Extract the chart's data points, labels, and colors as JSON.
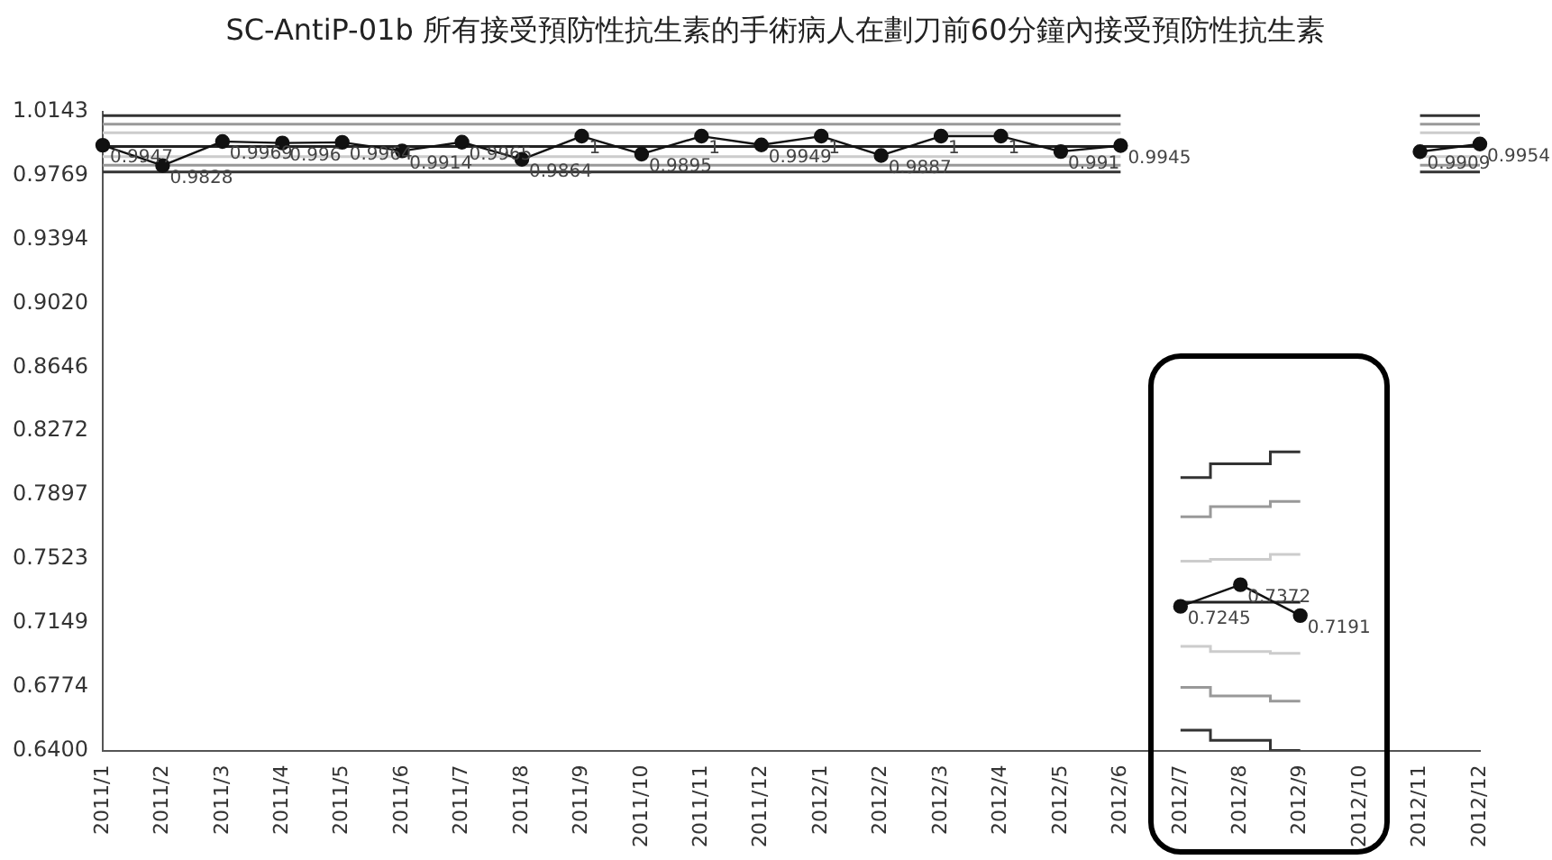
{
  "chart_data": {
    "type": "line",
    "title": "SC-AntiP-01b 所有接受預防性抗生素的手術病人在劃刀前60分鐘內接受預防性抗生素",
    "categories": [
      "2011/1",
      "2011/2",
      "2011/3",
      "2011/4",
      "2011/5",
      "2011/6",
      "2011/7",
      "2011/8",
      "2011/9",
      "2011/10",
      "2011/11",
      "2011/12",
      "2012/1",
      "2012/2",
      "2012/3",
      "2012/4",
      "2012/5",
      "2012/6",
      "2012/7",
      "2012/8",
      "2012/9",
      "2012/10",
      "2012/11",
      "2012/12"
    ],
    "ylim": [
      0.64,
      1.0143
    ],
    "yticks": [
      {
        "value": 0.64,
        "label": "0.6400"
      },
      {
        "value": 0.6774,
        "label": "0.6774"
      },
      {
        "value": 0.7149,
        "label": "0.7149"
      },
      {
        "value": 0.7523,
        "label": "0.7523"
      },
      {
        "value": 0.7897,
        "label": "0.7897"
      },
      {
        "value": 0.8272,
        "label": "0.8272"
      },
      {
        "value": 0.8646,
        "label": "0.8646"
      },
      {
        "value": 0.902,
        "label": "0.9020"
      },
      {
        "value": 0.9394,
        "label": "0.9394"
      },
      {
        "value": 0.9769,
        "label": "0.9769"
      },
      {
        "value": 1.0143,
        "label": "1.0143"
      }
    ],
    "grid": false,
    "legend": false,
    "marker": "circle",
    "series": [
      {
        "type": "line",
        "color": "#111111",
        "values": [
          0.9947,
          0.9828,
          0.9969,
          0.996,
          0.9964,
          0.9914,
          0.9965,
          0.9864,
          1,
          0.9895,
          1,
          0.9949,
          1,
          0.9887,
          1,
          1,
          0.991,
          0.9945,
          null,
          null,
          null,
          null,
          0.9909,
          0.9954
        ],
        "value_labels": [
          "0.9947",
          "0.9828",
          "0.9969",
          "0.996",
          "0.9964",
          "0.9914",
          "0.9965",
          "0.9864",
          "1",
          "0.9895",
          "1",
          "0.9949",
          "1",
          "0.9887",
          "1",
          "1",
          "0.991",
          "0.9945",
          null,
          null,
          null,
          null,
          "0.9909",
          "0.9954"
        ]
      },
      {
        "type": "line",
        "color": "#111111",
        "values": [
          null,
          null,
          null,
          null,
          null,
          null,
          null,
          null,
          null,
          null,
          null,
          null,
          null,
          null,
          null,
          null,
          null,
          null,
          0.7245,
          0.7372,
          0.7191,
          null,
          null,
          null
        ],
        "value_labels": [
          null,
          null,
          null,
          null,
          null,
          null,
          null,
          null,
          null,
          null,
          null,
          null,
          null,
          null,
          null,
          null,
          null,
          null,
          "0.7245",
          "0.7372",
          "0.7191",
          null,
          null,
          null
        ]
      },
      {
        "type": "step",
        "marker": "none",
        "color": "#333333",
        "values": [
          1.012,
          1.012,
          1.012,
          1.012,
          1.012,
          1.012,
          1.012,
          1.012,
          1.012,
          1.012,
          1.012,
          1.012,
          1.012,
          1.012,
          1.012,
          1.012,
          1.012,
          1.012,
          null,
          null,
          null,
          null,
          1.012,
          1.012
        ]
      },
      {
        "type": "step",
        "marker": "none",
        "color": "#999999",
        "values": [
          1.007,
          1.007,
          1.007,
          1.007,
          1.007,
          1.007,
          1.007,
          1.007,
          1.007,
          1.007,
          1.007,
          1.007,
          1.007,
          1.007,
          1.007,
          1.007,
          1.007,
          1.007,
          null,
          null,
          null,
          null,
          1.007,
          1.007
        ]
      },
      {
        "type": "step",
        "marker": "none",
        "color": "#cccccc",
        "values": [
          1.002,
          1.002,
          1.002,
          1.002,
          1.002,
          1.002,
          1.002,
          1.002,
          1.002,
          1.002,
          1.002,
          1.002,
          1.002,
          1.002,
          1.002,
          1.002,
          1.002,
          1.002,
          null,
          null,
          null,
          null,
          1.002,
          1.002
        ]
      },
      {
        "type": "step",
        "marker": "none",
        "color": "#222222",
        "values": [
          0.994,
          0.994,
          0.994,
          0.994,
          0.994,
          0.994,
          0.994,
          0.994,
          0.994,
          0.994,
          0.994,
          0.994,
          0.994,
          0.994,
          0.994,
          0.994,
          0.994,
          0.994,
          null,
          null,
          null,
          null,
          0.994,
          0.994
        ]
      },
      {
        "type": "step",
        "marker": "none",
        "color": "#cccccc",
        "values": [
          0.988,
          0.988,
          0.988,
          0.988,
          0.988,
          0.988,
          0.988,
          0.988,
          0.988,
          0.988,
          0.988,
          0.988,
          0.988,
          0.988,
          0.988,
          0.988,
          0.988,
          0.988,
          null,
          null,
          null,
          null,
          0.988,
          0.988
        ]
      },
      {
        "type": "step",
        "marker": "none",
        "color": "#999999",
        "values": [
          0.983,
          0.983,
          0.983,
          0.983,
          0.983,
          0.983,
          0.983,
          0.983,
          0.983,
          0.983,
          0.983,
          0.983,
          0.983,
          0.983,
          0.983,
          0.983,
          0.983,
          0.983,
          null,
          null,
          null,
          null,
          0.983,
          0.983
        ]
      },
      {
        "type": "step",
        "marker": "none",
        "color": "#333333",
        "values": [
          0.979,
          0.979,
          0.979,
          0.979,
          0.979,
          0.979,
          0.979,
          0.979,
          0.979,
          0.979,
          0.979,
          0.979,
          0.979,
          0.979,
          0.979,
          0.979,
          0.979,
          0.979,
          null,
          null,
          null,
          null,
          0.979,
          0.979
        ]
      },
      {
        "type": "step",
        "marker": "none",
        "color": "#333333",
        "values": [
          null,
          null,
          null,
          null,
          null,
          null,
          null,
          null,
          null,
          null,
          null,
          null,
          null,
          null,
          null,
          null,
          null,
          null,
          0.8,
          0.808,
          0.815,
          null,
          null,
          null
        ]
      },
      {
        "type": "step",
        "marker": "none",
        "color": "#999999",
        "values": [
          null,
          null,
          null,
          null,
          null,
          null,
          null,
          null,
          null,
          null,
          null,
          null,
          null,
          null,
          null,
          null,
          null,
          null,
          0.777,
          0.783,
          0.786,
          null,
          null,
          null
        ]
      },
      {
        "type": "step",
        "marker": "none",
        "color": "#cccccc",
        "values": [
          null,
          null,
          null,
          null,
          null,
          null,
          null,
          null,
          null,
          null,
          null,
          null,
          null,
          null,
          null,
          null,
          null,
          null,
          0.751,
          0.752,
          0.755,
          null,
          null,
          null
        ]
      },
      {
        "type": "step",
        "marker": "none",
        "color": "#222222",
        "values": [
          null,
          null,
          null,
          null,
          null,
          null,
          null,
          null,
          null,
          null,
          null,
          null,
          null,
          null,
          null,
          null,
          null,
          null,
          0.727,
          0.727,
          0.727,
          null,
          null,
          null
        ]
      },
      {
        "type": "step",
        "marker": "none",
        "color": "#cccccc",
        "values": [
          null,
          null,
          null,
          null,
          null,
          null,
          null,
          null,
          null,
          null,
          null,
          null,
          null,
          null,
          null,
          null,
          null,
          null,
          0.701,
          0.698,
          0.697,
          null,
          null,
          null
        ]
      },
      {
        "type": "step",
        "marker": "none",
        "color": "#999999",
        "values": [
          null,
          null,
          null,
          null,
          null,
          null,
          null,
          null,
          null,
          null,
          null,
          null,
          null,
          null,
          null,
          null,
          null,
          null,
          0.677,
          0.672,
          0.669,
          null,
          null,
          null
        ]
      },
      {
        "type": "step",
        "marker": "none",
        "color": "#333333",
        "values": [
          null,
          null,
          null,
          null,
          null,
          null,
          null,
          null,
          null,
          null,
          null,
          null,
          null,
          null,
          null,
          null,
          null,
          null,
          0.652,
          0.646,
          0.64,
          null,
          null,
          null
        ]
      }
    ]
  }
}
